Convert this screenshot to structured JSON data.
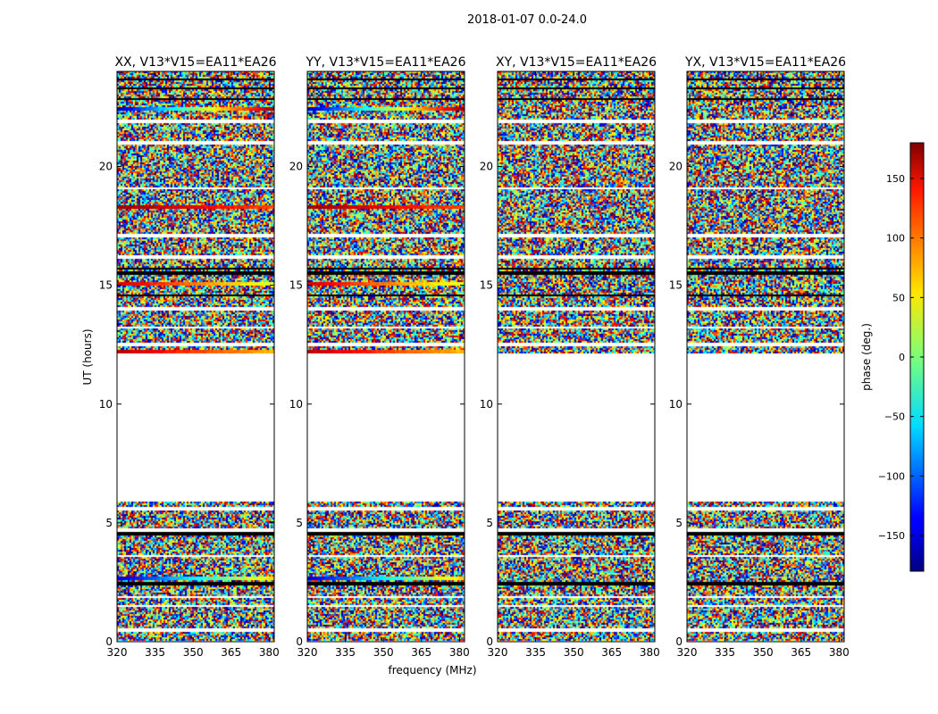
{
  "chart_data": {
    "type": "heatmap",
    "title": "2018-01-07 0.0-24.0",
    "xlabel": "frequency (MHz)",
    "ylabel": "UT (hours)",
    "xlim": [
      320,
      382
    ],
    "ylim": [
      0,
      24
    ],
    "xticks": [
      320,
      335,
      350,
      365,
      380
    ],
    "yticks": [
      0,
      5,
      10,
      15,
      20
    ],
    "panels": [
      {
        "title": "XX, V13*V15=EA11*EA26"
      },
      {
        "title": "YY, V13*V15=EA11*EA26"
      },
      {
        "title": "XY, V13*V15=EA11*EA26"
      },
      {
        "title": "YX, V13*V15=EA11*EA26"
      }
    ],
    "no_data_ut_range": [
      5.9,
      12.1
    ],
    "blank_ut_rows": [
      0.5,
      1.5,
      1.9,
      3.6,
      4.7,
      5.6,
      12.5,
      13.2,
      14.0,
      16.2,
      17.1,
      19.1,
      21.0,
      21.9
    ],
    "black_ut_rows": [
      2.45,
      4.55,
      14.55,
      15.5,
      15.7,
      22.85,
      23.3,
      23.65
    ],
    "coherent_rows": [
      {
        "panel": 0,
        "ut": 2.65,
        "phase_start": -150,
        "phase_end": 60
      },
      {
        "panel": 0,
        "ut": 12.2,
        "phase_start": 160,
        "phase_end": 70
      },
      {
        "panel": 0,
        "ut": 15.05,
        "phase_start": 150,
        "phase_end": 30
      },
      {
        "panel": 0,
        "ut": 18.3,
        "phase_start": 170,
        "phase_end": 110
      },
      {
        "panel": 0,
        "ut": 22.4,
        "phase_start": -160,
        "phase_end": 170
      },
      {
        "panel": 1,
        "ut": 2.65,
        "phase_start": -150,
        "phase_end": 60
      },
      {
        "panel": 1,
        "ut": 12.2,
        "phase_start": 160,
        "phase_end": 70
      },
      {
        "panel": 1,
        "ut": 15.05,
        "phase_start": 150,
        "phase_end": 30
      },
      {
        "panel": 1,
        "ut": 18.3,
        "phase_start": 170,
        "phase_end": 110
      },
      {
        "panel": 1,
        "ut": 22.4,
        "phase_start": -160,
        "phase_end": 170
      }
    ],
    "colorbar": {
      "label": "phase (deg.)",
      "range": [
        -180,
        180
      ],
      "ticks": [
        150,
        100,
        50,
        0,
        -50,
        -100,
        -150
      ],
      "colormap": "jet"
    }
  }
}
